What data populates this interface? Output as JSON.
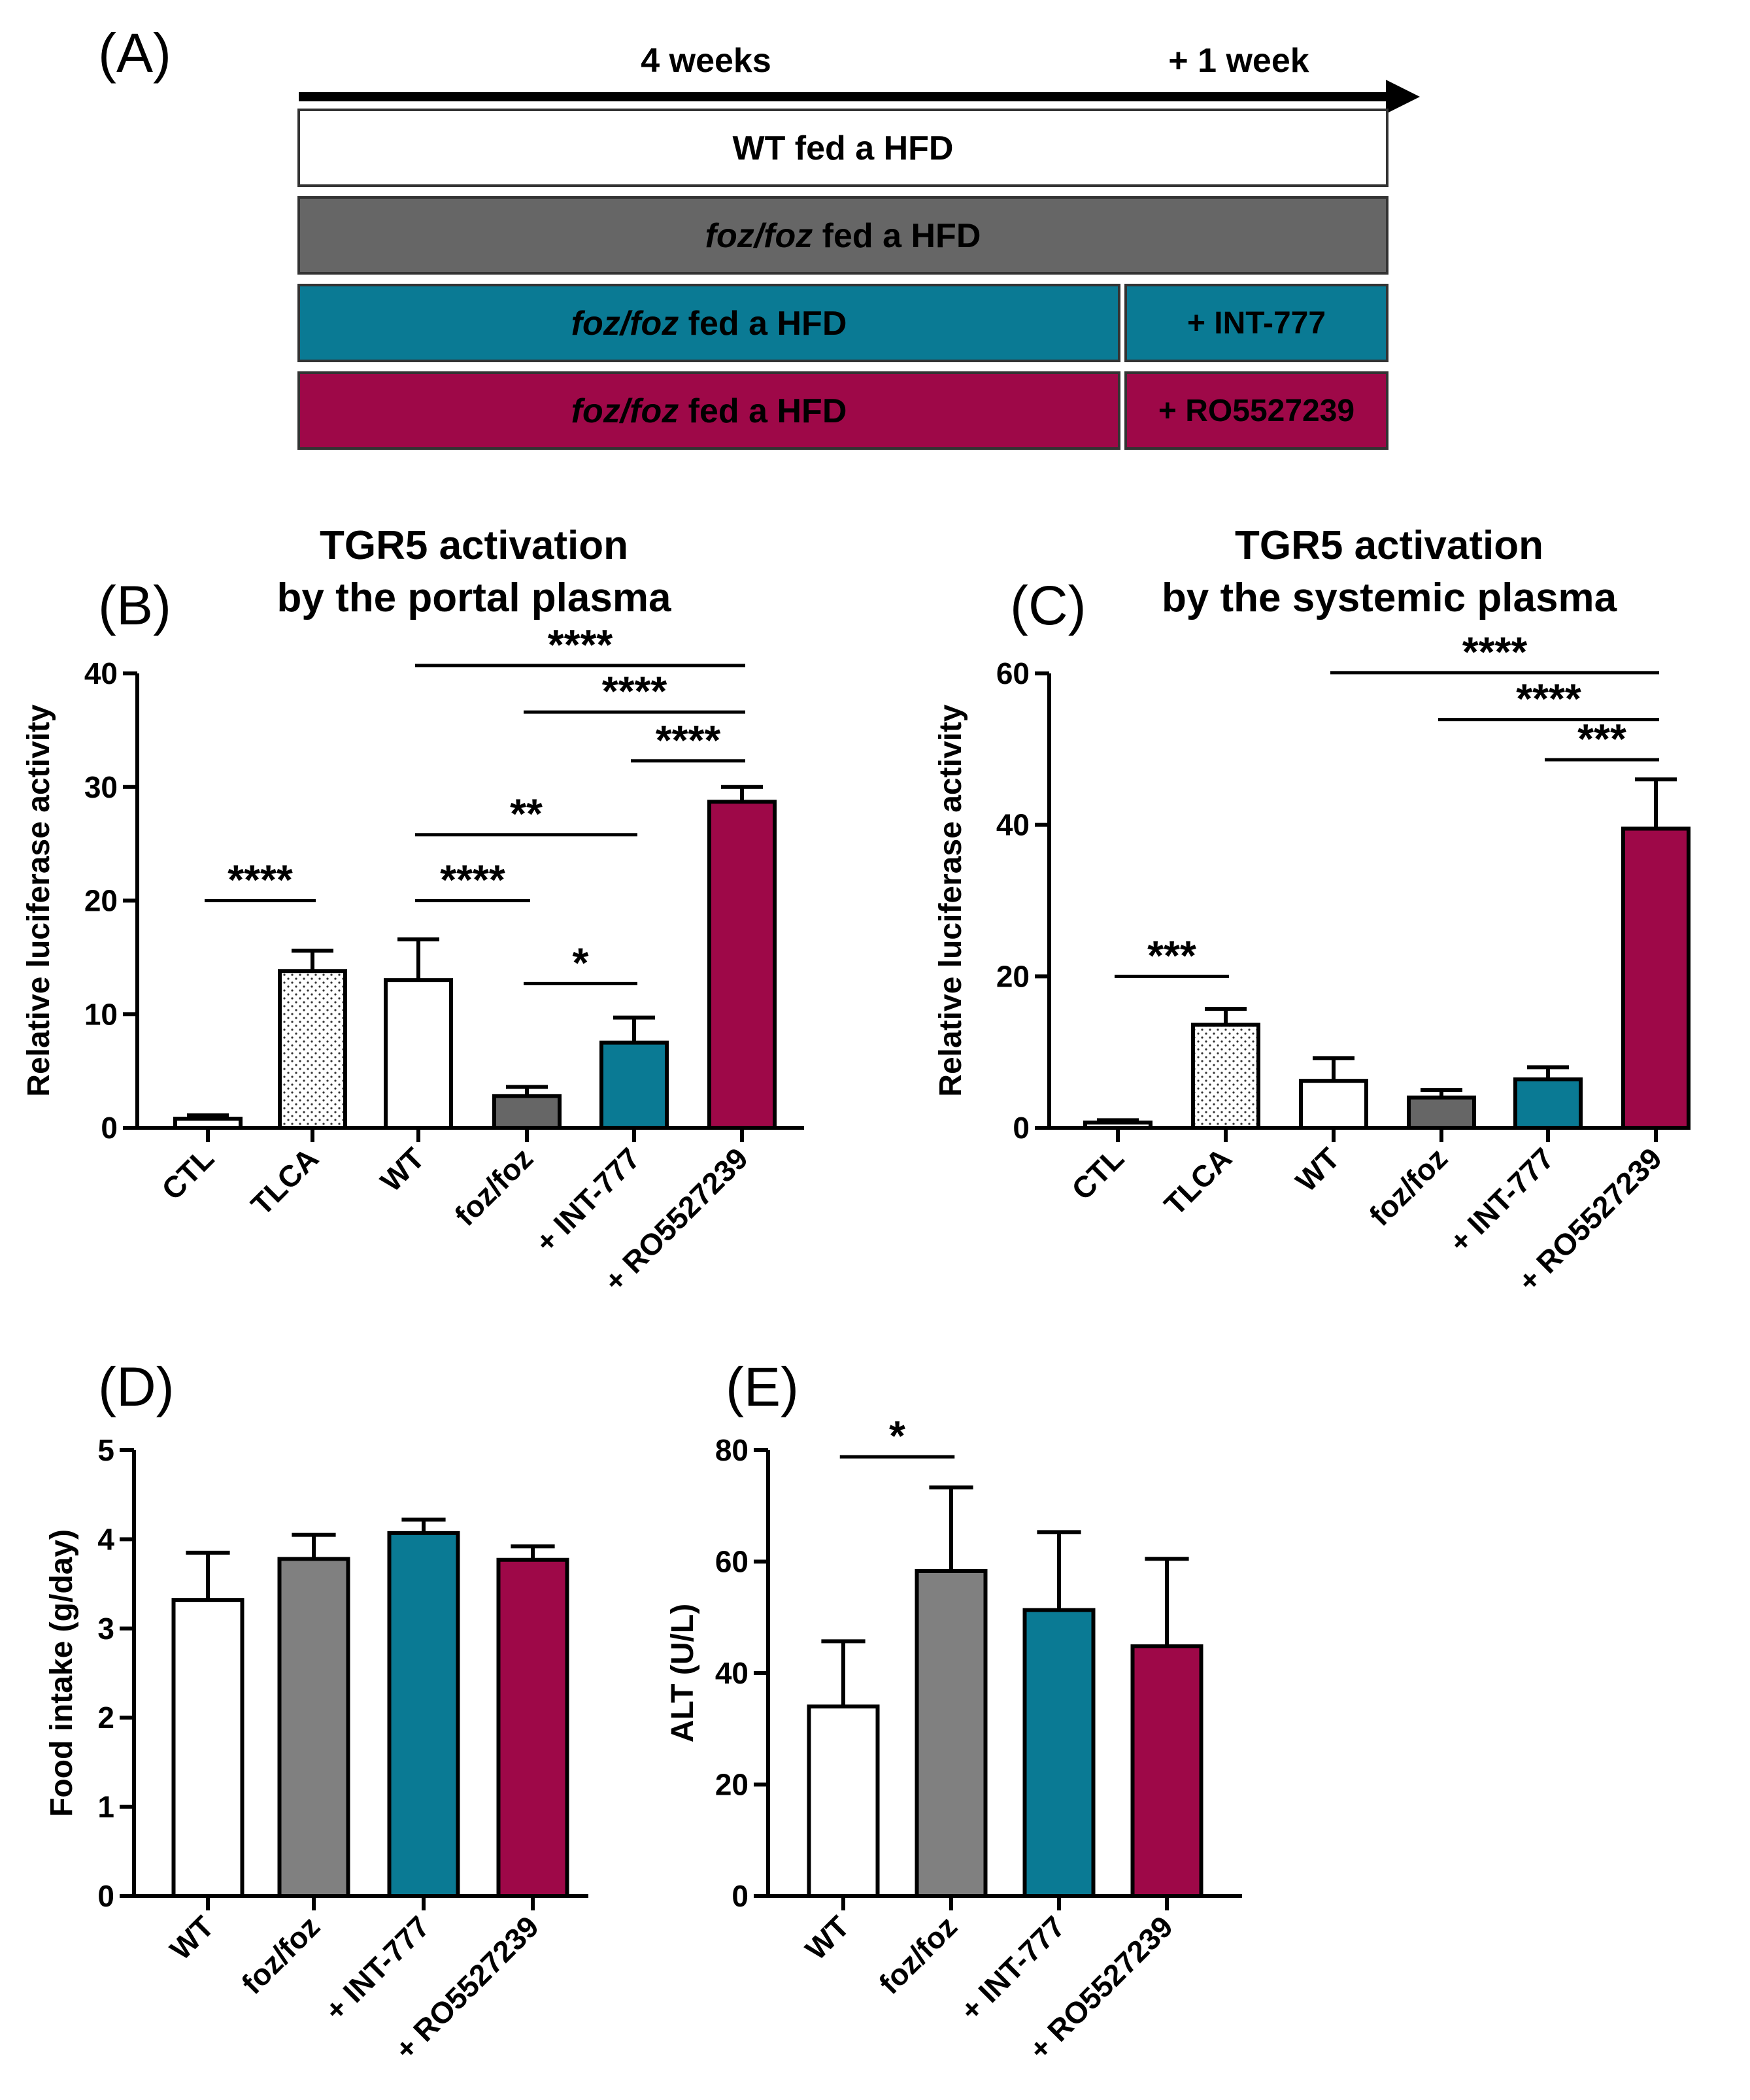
{
  "colors": {
    "wt": "#ffffff",
    "foz": "#666666",
    "foz_light": "#808080",
    "int777": "#0a7a94",
    "ro": "#9e0848",
    "tlca": "#ffffff"
  },
  "panel_a": {
    "label": "(A)",
    "period1": "4 weeks",
    "period2": "+ 1 week",
    "rows": [
      {
        "italic": "",
        "text": "WT fed a HFD",
        "suffix": "",
        "color": "wt"
      },
      {
        "italic": "foz/foz",
        "text": " fed a HFD",
        "suffix": "",
        "color": "foz"
      },
      {
        "italic": "foz/foz",
        "text": " fed a HFD",
        "suffix": "+ INT-777",
        "color": "int777"
      },
      {
        "italic": "foz/foz",
        "text": " fed a HFD",
        "suffix": "+ RO5527239",
        "color": "ro"
      }
    ]
  },
  "chart_data": [
    {
      "id": "B",
      "label": "(B)",
      "type": "bar",
      "title": [
        "TGR5 activation",
        "by the portal plasma"
      ],
      "ylabel": "Relative luciferase activity",
      "ylim": [
        0,
        40
      ],
      "yticks": [
        0,
        10,
        20,
        30,
        40
      ],
      "categories": [
        "CTL",
        "TLCA",
        "WT",
        "foz/foz",
        "+ INT-777",
        "+ RO5527239"
      ],
      "values": [
        0.8,
        13.8,
        13.0,
        2.8,
        7.5,
        28.7
      ],
      "errors": [
        0.3,
        1.8,
        3.6,
        0.8,
        2.2,
        1.3
      ],
      "colors": [
        "wt",
        "tlca",
        "wt",
        "foz",
        "int777",
        "ro"
      ],
      "patterns": [
        "none",
        "dots",
        "none",
        "none",
        "none",
        "none"
      ],
      "significance": [
        {
          "from": 0,
          "to": 1,
          "label": "****",
          "y": 20.0
        },
        {
          "from": 2,
          "to": 3,
          "label": "****",
          "y": 20.0
        },
        {
          "from": 3,
          "to": 4,
          "label": "*",
          "y": 12.7
        },
        {
          "from": 2,
          "to": 4,
          "label": "**",
          "y": 25.8
        },
        {
          "from": 4,
          "to": 5,
          "label": "****",
          "y": 32.3
        },
        {
          "from": 3,
          "to": 5,
          "label": "****",
          "y": 36.6
        },
        {
          "from": 2,
          "to": 5,
          "label": "****",
          "y": 40.7
        }
      ]
    },
    {
      "id": "C",
      "label": "(C)",
      "type": "bar",
      "title": [
        "TGR5 activation",
        "by the systemic plasma"
      ],
      "ylabel": "Relative luciferase activity",
      "ylim": [
        0,
        60
      ],
      "yticks": [
        0,
        20,
        40,
        60
      ],
      "categories": [
        "CTL",
        "TLCA",
        "WT",
        "foz/foz",
        "+ INT-777",
        "+ RO5527239"
      ],
      "values": [
        0.7,
        13.6,
        6.2,
        4.0,
        6.4,
        39.5
      ],
      "errors": [
        0.3,
        2.1,
        3.0,
        1.0,
        1.6,
        6.5
      ],
      "colors": [
        "wt",
        "tlca",
        "wt",
        "foz",
        "int777",
        "ro"
      ],
      "patterns": [
        "none",
        "dots",
        "none",
        "none",
        "none",
        "none"
      ],
      "significance": [
        {
          "from": 0,
          "to": 1,
          "label": "***",
          "y": 20.0
        },
        {
          "from": 4,
          "to": 5,
          "label": "***",
          "y": 48.6
        },
        {
          "from": 3,
          "to": 5,
          "label": "****",
          "y": 53.9
        },
        {
          "from": 2,
          "to": 5,
          "label": "****",
          "y": 60.1
        }
      ]
    },
    {
      "id": "D",
      "label": "(D)",
      "type": "bar",
      "title": [],
      "ylabel": "Food intake (g/day)",
      "ylim": [
        0,
        5
      ],
      "yticks": [
        0,
        1,
        2,
        3,
        4,
        5
      ],
      "categories": [
        "WT",
        "foz/foz",
        "+ INT-777",
        "+ RO5527239"
      ],
      "values": [
        3.32,
        3.78,
        4.07,
        3.77
      ],
      "errors": [
        0.53,
        0.27,
        0.15,
        0.15
      ],
      "colors": [
        "wt",
        "foz_light",
        "int777",
        "ro"
      ],
      "patterns": [
        "none",
        "none",
        "none",
        "none"
      ],
      "significance": []
    },
    {
      "id": "E",
      "label": "(E)",
      "type": "bar",
      "title": [],
      "ylabel": "ALT (U/L)",
      "ylim": [
        0,
        80
      ],
      "yticks": [
        0,
        20,
        40,
        60,
        80
      ],
      "categories": [
        "WT",
        "foz/foz",
        "+ INT-777",
        "+ RO5527239"
      ],
      "values": [
        34.0,
        58.3,
        51.3,
        44.8
      ],
      "errors": [
        11.7,
        15.0,
        14.0,
        15.7
      ],
      "colors": [
        "wt",
        "foz_light",
        "int777",
        "ro"
      ],
      "patterns": [
        "none",
        "none",
        "none",
        "none"
      ],
      "significance": [
        {
          "from": 0,
          "to": 1,
          "label": "*",
          "y": 78.8
        }
      ]
    }
  ]
}
